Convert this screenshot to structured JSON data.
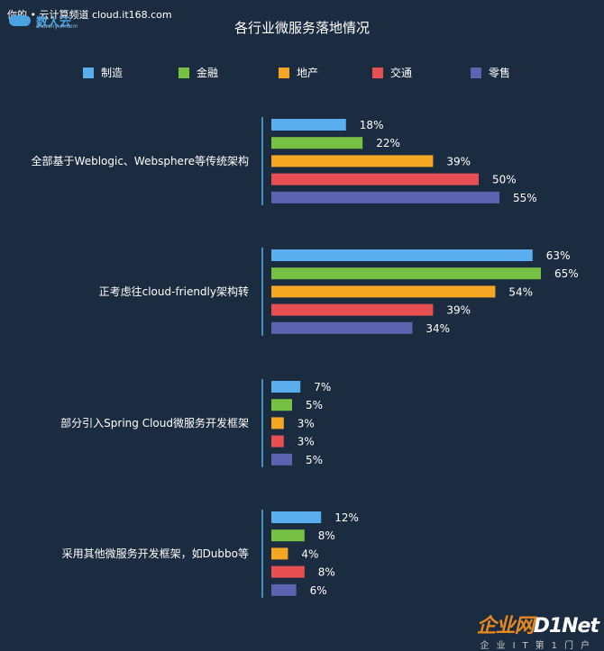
{
  "header": {
    "site_text": "你的 • 云计算频道 cloud.it168.com",
    "brand": "数人云",
    "brand_sub": "shurenyun.com"
  },
  "watermark": {
    "text_a": "企业网",
    "text_b": "D1Net",
    "sub": "企业IT第1门户"
  },
  "chart_data": {
    "type": "bar",
    "orientation": "horizontal",
    "title": "各行业微服务落地情况",
    "categories": [
      "全部基于Weblogic、Websphere等传统架构",
      "正考虑往cloud-friendly架构转",
      "部分引入Spring Cloud微服务开发框架",
      "采用其他微服务开发框架，如Dubbo等"
    ],
    "series": [
      {
        "name": "制造",
        "color": "#5aaeee",
        "values": [
          18,
          63,
          7,
          12
        ]
      },
      {
        "name": "金融",
        "color": "#76c043",
        "values": [
          22,
          65,
          5,
          8
        ]
      },
      {
        "name": "地产",
        "color": "#f5a623",
        "values": [
          39,
          54,
          3,
          4
        ]
      },
      {
        "name": "交通",
        "color": "#e84f53",
        "values": [
          50,
          39,
          3,
          8
        ]
      },
      {
        "name": "零售",
        "color": "#5d63b1",
        "values": [
          55,
          34,
          5,
          6
        ]
      }
    ],
    "value_suffix": "%",
    "xlim": [
      0,
      100
    ],
    "grid": false,
    "legend_position": "top"
  }
}
